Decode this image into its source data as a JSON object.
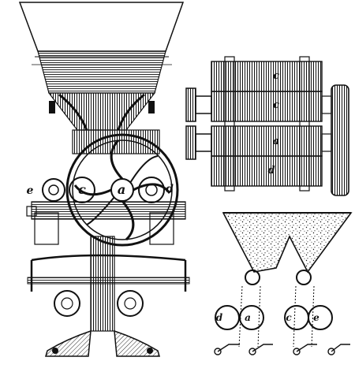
{
  "colors": {
    "ink": "#111111",
    "paper": "#ffffff",
    "shade": "#222222"
  },
  "views": {
    "front_elevation": {
      "labels": {
        "a": "a",
        "c": "c",
        "d": "d",
        "e": "e"
      }
    },
    "roller_plan": {
      "labels": {
        "c_top": "c",
        "c_mid": "c",
        "a": "a",
        "d": "d"
      }
    },
    "section": {
      "labels": {
        "d": "d",
        "a": "a",
        "c": "c",
        "e": "e"
      }
    }
  }
}
